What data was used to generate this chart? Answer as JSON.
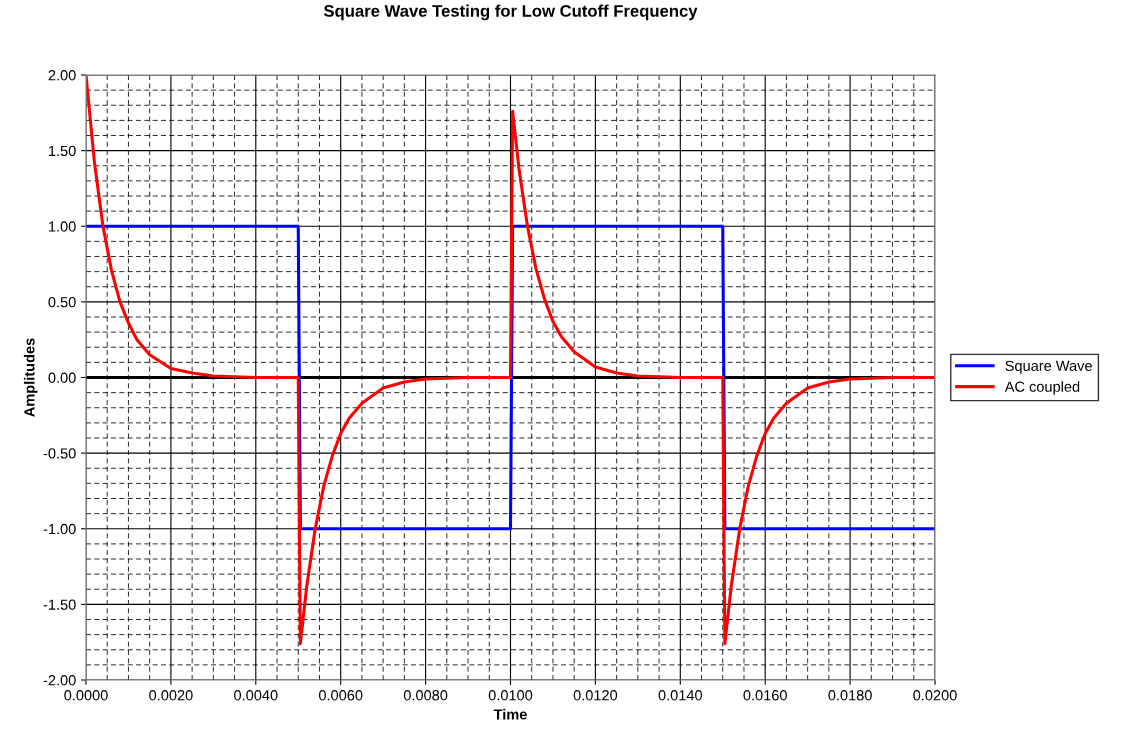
{
  "chart_data": {
    "type": "line",
    "title": "Square Wave Testing for Low Cutoff Frequency",
    "xlabel": "Time",
    "ylabel": "Amplitudes",
    "series": [
      {
        "name": "Square Wave",
        "color": "#0000ff",
        "x": [
          0,
          0.005,
          0.00505,
          0.01,
          0.01005,
          0.015,
          0.01505,
          0.02
        ],
        "values": [
          1,
          1,
          -1,
          -1,
          1,
          1,
          -1,
          -1
        ]
      },
      {
        "name": "AC coupled",
        "color": "#ff0000",
        "x": [
          0,
          0.0002,
          0.0004,
          0.0006,
          0.0008,
          0.001,
          0.0012,
          0.0015,
          0.002,
          0.0025,
          0.003,
          0.004,
          0.005,
          0.00505,
          0.0052,
          0.0054,
          0.0056,
          0.0058,
          0.006,
          0.0062,
          0.0065,
          0.007,
          0.0075,
          0.008,
          0.009,
          0.01,
          0.01005,
          0.0102,
          0.0104,
          0.0106,
          0.0108,
          0.011,
          0.0112,
          0.0115,
          0.012,
          0.0125,
          0.013,
          0.014,
          0.015,
          0.01505,
          0.0152,
          0.0154,
          0.0156,
          0.0158,
          0.016,
          0.0162,
          0.0165,
          0.017,
          0.0175,
          0.018,
          0.019,
          0.02
        ],
        "values": [
          2.0,
          1.42,
          1.0,
          0.71,
          0.5,
          0.36,
          0.25,
          0.15,
          0.06,
          0.03,
          0.01,
          0.0,
          0.0,
          -1.76,
          -1.38,
          -1.0,
          -0.72,
          -0.52,
          -0.37,
          -0.27,
          -0.17,
          -0.07,
          -0.03,
          -0.01,
          0.0,
          0.0,
          1.76,
          1.38,
          1.0,
          0.72,
          0.52,
          0.37,
          0.27,
          0.17,
          0.07,
          0.03,
          0.01,
          0.0,
          0.0,
          -1.76,
          -1.38,
          -1.0,
          -0.72,
          -0.52,
          -0.37,
          -0.27,
          -0.17,
          -0.07,
          -0.03,
          -0.01,
          0.0,
          0.0
        ]
      }
    ],
    "xlim": [
      0,
      0.02
    ],
    "xticks": [
      {
        "value": 0,
        "label": "0.0000"
      },
      {
        "value": 0.002,
        "label": "0.0020"
      },
      {
        "value": 0.004,
        "label": "0.0040"
      },
      {
        "value": 0.006,
        "label": "0.0060"
      },
      {
        "value": 0.008,
        "label": "0.0080"
      },
      {
        "value": 0.01,
        "label": "0.0100"
      },
      {
        "value": 0.012,
        "label": "0.0120"
      },
      {
        "value": 0.014,
        "label": "0.0140"
      },
      {
        "value": 0.016,
        "label": "0.0160"
      },
      {
        "value": 0.018,
        "label": "0.0180"
      },
      {
        "value": 0.02,
        "label": "0.0200"
      }
    ],
    "ylim": [
      -2,
      2
    ],
    "yticks": [
      {
        "value": -2,
        "label": "-2.00"
      },
      {
        "value": -1.5,
        "label": "-1.50"
      },
      {
        "value": -1,
        "label": "-1.00"
      },
      {
        "value": -0.5,
        "label": "-0.50"
      },
      {
        "value": 0,
        "label": "0.00"
      },
      {
        "value": 0.5,
        "label": "0.50"
      },
      {
        "value": 1,
        "label": "1.00"
      },
      {
        "value": 1.5,
        "label": "1.50"
      },
      {
        "value": 2,
        "label": "2.00"
      }
    ],
    "ref_lines": [
      {
        "axis": "y",
        "value": 0,
        "color": "#000000"
      }
    ],
    "grid": true,
    "legend": "right",
    "marker": "none",
    "line_style": "solid"
  }
}
